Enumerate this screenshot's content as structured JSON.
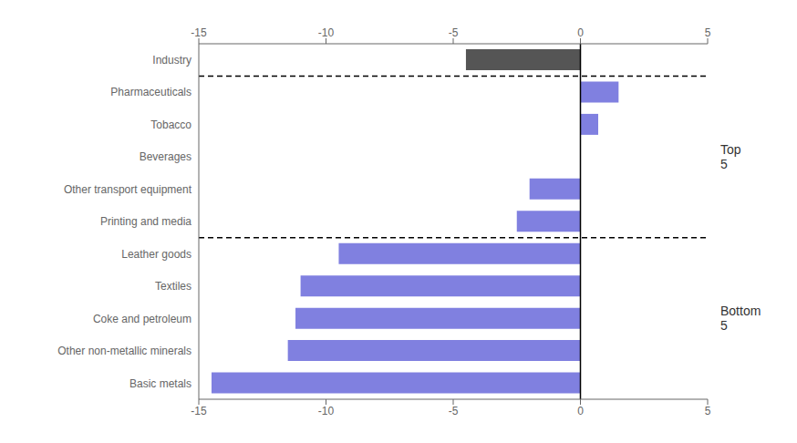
{
  "chart_data": {
    "type": "bar",
    "orientation": "horizontal",
    "categories": [
      "Basic metals",
      "Other non-metallic minerals",
      "Coke and petroleum",
      "Textiles",
      "Leather goods",
      "Printing and media",
      "Other transport equipment",
      "Beverages",
      "Tobacco",
      "Pharmaceuticals",
      "Industry"
    ],
    "values": [
      -14.5,
      -11.5,
      -11.2,
      -11.0,
      -9.5,
      -2.5,
      -2.0,
      0.0,
      0.7,
      1.5,
      -4.5
    ],
    "colors": [
      "#8080e0",
      "#8080e0",
      "#8080e0",
      "#8080e0",
      "#8080e0",
      "#8080e0",
      "#8080e0",
      "#8080e0",
      "#8080e0",
      "#8080e0",
      "#555555"
    ],
    "xlim": [
      -15,
      5
    ],
    "xticks": [
      -15,
      -10,
      -5,
      0,
      5
    ],
    "groups": [
      {
        "label": "Top\n5",
        "first": "Printing and media",
        "last": "Pharmaceuticals"
      },
      {
        "label": "Bottom\n5",
        "first": "Basic metals",
        "last": "Leather goods"
      }
    ]
  }
}
